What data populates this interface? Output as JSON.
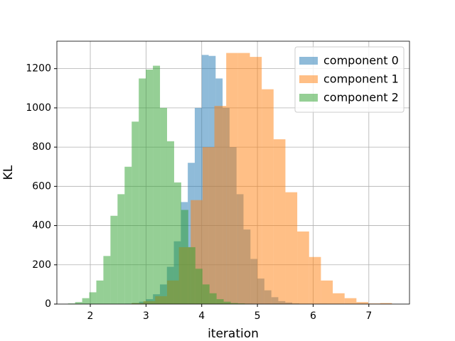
{
  "chart_data": {
    "type": "histogram",
    "xlabel": "iteration",
    "ylabel": "KL",
    "xlim": [
      1.4,
      7.73
    ],
    "ylim": [
      0,
      1340
    ],
    "xticks": [
      2,
      3,
      4,
      5,
      6,
      7
    ],
    "yticks": [
      0,
      200,
      400,
      600,
      800,
      1000,
      1200
    ],
    "grid": true,
    "legend": "upper right",
    "opacity": 0.5,
    "series": [
      {
        "name": "component 0",
        "color": "#1f77b4",
        "bins": [
          2.5,
          2.625,
          2.75,
          2.875,
          3.0,
          3.125,
          3.25,
          3.375,
          3.5,
          3.625,
          3.75,
          3.875,
          4.0,
          4.125,
          4.25,
          4.375,
          4.5,
          4.625,
          4.75,
          4.875,
          5.0,
          5.125,
          5.25,
          5.375,
          5.5,
          5.625,
          5.75,
          5.875,
          6.0,
          6.125,
          6.25
        ],
        "values": [
          1,
          2,
          5,
          12,
          25,
          50,
          100,
          190,
          320,
          520,
          720,
          1000,
          1270,
          1265,
          1150,
          1000,
          800,
          560,
          380,
          230,
          130,
          70,
          35,
          15,
          8,
          3,
          1,
          1,
          0,
          1
        ]
      },
      {
        "name": "component 1",
        "color": "#ff7f0e",
        "bins": [
          2.74,
          2.9525,
          3.165,
          3.3775,
          3.59,
          3.8025,
          4.015,
          4.2275,
          4.44,
          4.6525,
          4.865,
          5.0775,
          5.29,
          5.5025,
          5.715,
          5.9275,
          6.14,
          6.3525,
          6.565,
          6.7775,
          6.99,
          7.2025,
          7.415
        ],
        "values": [
          5,
          15,
          40,
          120,
          290,
          530,
          800,
          1010,
          1280,
          1280,
          1260,
          1095,
          840,
          570,
          370,
          240,
          120,
          55,
          30,
          10,
          3,
          5
        ]
      },
      {
        "name": "component 2",
        "color": "#2ca02c",
        "bins": [
          1.6,
          1.727,
          1.854,
          1.981,
          2.108,
          2.235,
          2.362,
          2.489,
          2.616,
          2.743,
          2.87,
          2.997,
          3.124,
          3.251,
          3.378,
          3.505,
          3.632,
          3.759,
          3.886,
          4.013,
          4.14,
          4.267,
          4.394,
          4.521,
          4.648,
          4.775,
          4.902,
          5.029,
          5.156,
          5.283,
          5.41
        ],
        "values": [
          3,
          10,
          30,
          60,
          120,
          245,
          450,
          560,
          700,
          930,
          1150,
          1195,
          1215,
          1000,
          830,
          620,
          480,
          290,
          180,
          100,
          55,
          25,
          12,
          5,
          3,
          1,
          0,
          0,
          0,
          1
        ]
      }
    ]
  }
}
